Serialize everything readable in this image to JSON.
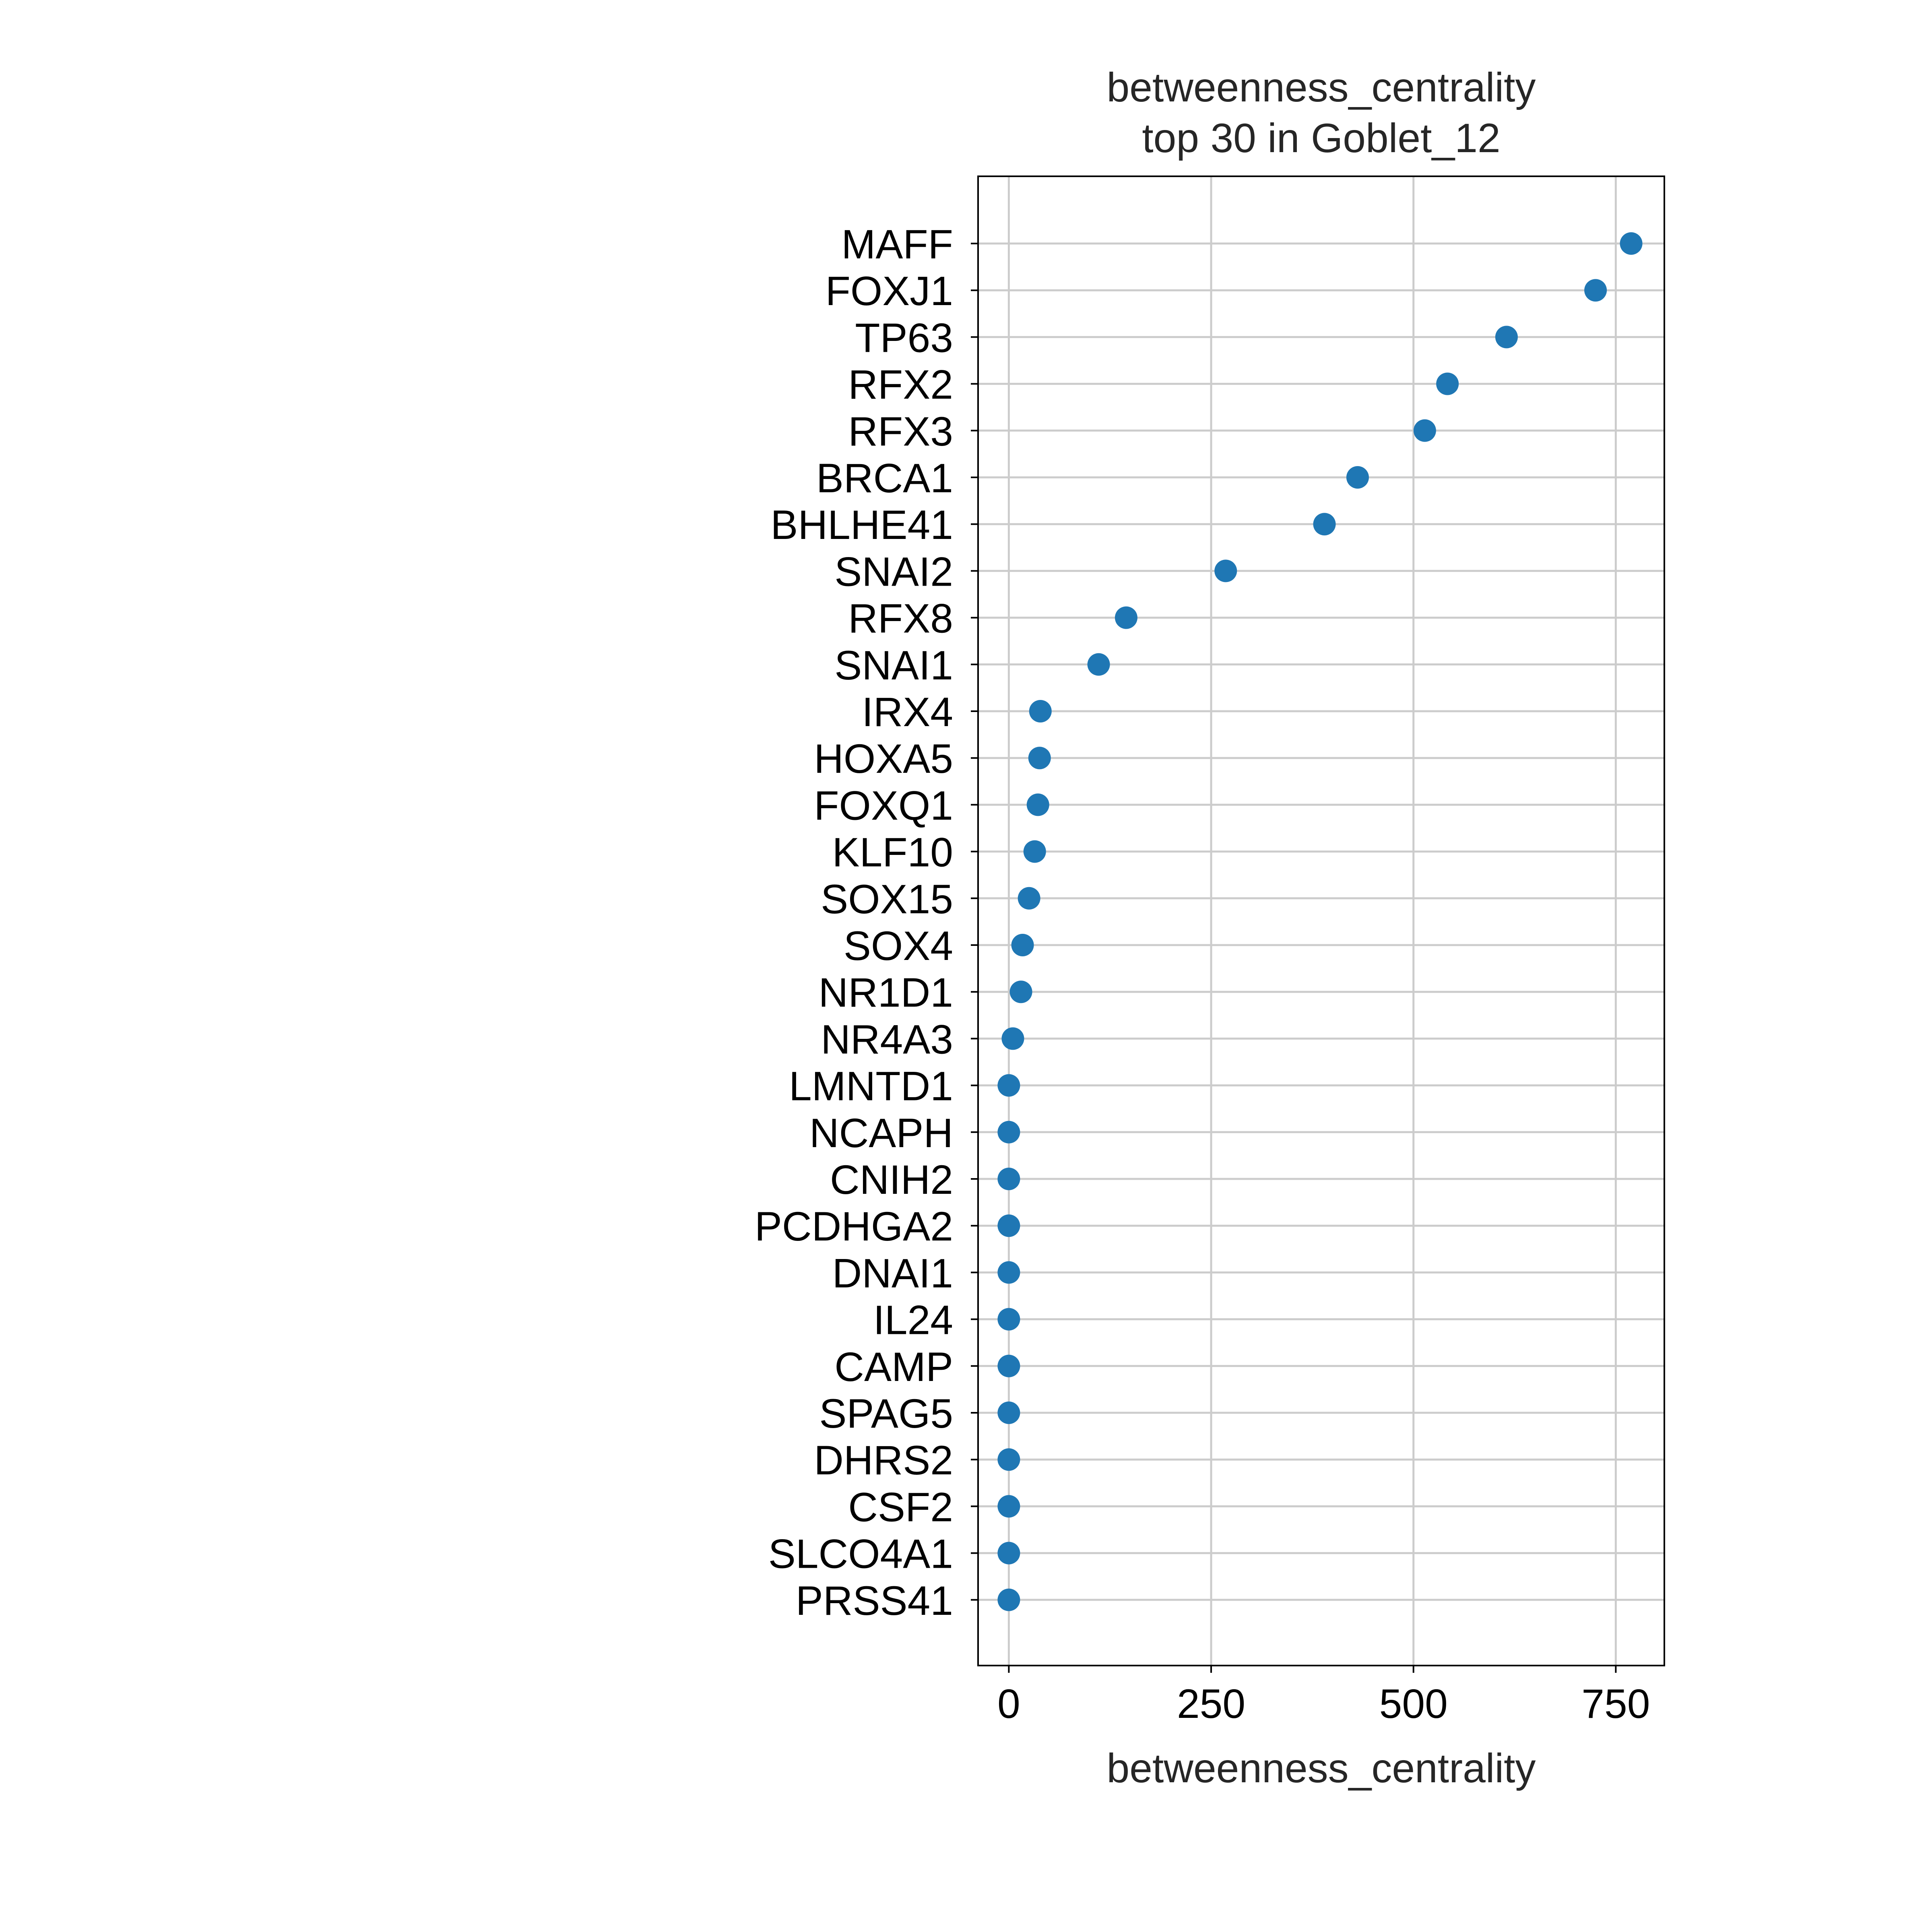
{
  "chart_data": {
    "type": "scatter",
    "title_line1": "betweenness_centrality",
    "title_line2": "top 30 in Goblet_12",
    "xlabel": "betweenness_centrality",
    "ylabel": "",
    "xlim": [
      -38,
      810
    ],
    "xticks": [
      0,
      250,
      500,
      750
    ],
    "xtick_labels": [
      "0",
      "250",
      "500",
      "750"
    ],
    "grid": true,
    "marker_color": "#1f77b4",
    "categories": [
      "MAFF",
      "FOXJ1",
      "TP63",
      "RFX2",
      "RFX3",
      "BRCA1",
      "BHLHE41",
      "SNAI2",
      "RFX8",
      "SNAI1",
      "IRX4",
      "HOXA5",
      "FOXQ1",
      "KLF10",
      "SOX15",
      "SOX4",
      "NR1D1",
      "NR4A3",
      "LMNTD1",
      "NCAPH",
      "CNIH2",
      "PCDHGA2",
      "DNAI1",
      "IL24",
      "CAMP",
      "SPAG5",
      "DHRS2",
      "CSF2",
      "SLCO4A1",
      "PRSS41"
    ],
    "values": [
      769,
      725,
      615,
      542,
      514,
      431,
      390,
      268,
      145,
      111,
      39,
      38,
      36,
      32,
      25,
      17,
      15,
      5,
      0,
      0,
      0,
      0,
      0,
      0,
      0,
      0,
      0,
      0,
      0,
      0
    ]
  }
}
